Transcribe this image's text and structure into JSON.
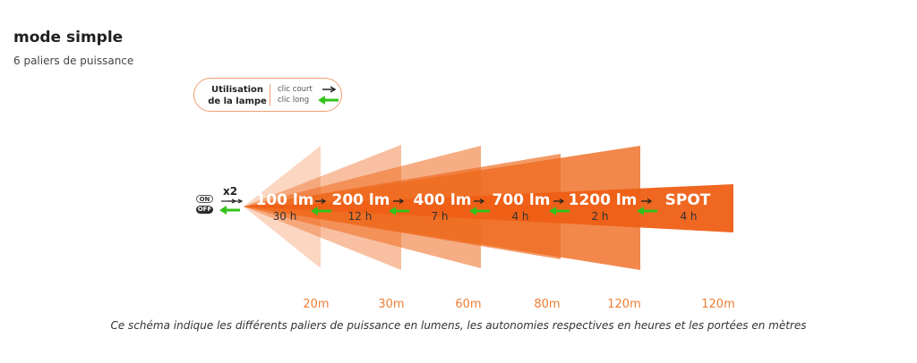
{
  "header": {
    "title": "mode simple",
    "subtitle": "6 paliers de puissance"
  },
  "usage": {
    "label": "Utilisation\nde la lampe",
    "short": "clic court",
    "long": "clic long"
  },
  "switch": {
    "on": "ON",
    "off": "OFF",
    "double": "x2"
  },
  "levels": [
    {
      "lumens": "100 lm",
      "hours": "30 h",
      "range": "20m"
    },
    {
      "lumens": "200 lm",
      "hours": "12 h",
      "range": "30m"
    },
    {
      "lumens": "400 lm",
      "hours": "7 h",
      "range": "60m"
    },
    {
      "lumens": "700 lm",
      "hours": "4 h",
      "range": "80m"
    },
    {
      "lumens": "1200 lm",
      "hours": "2 h",
      "range": "120m"
    },
    {
      "lumens": "SPOT",
      "hours": "4 h",
      "range": "120m"
    }
  ],
  "caption": "Ce schéma indique les différents paliers de puissance en lumens, les autonomies respectives en heures et les portées en mètres",
  "colors": {
    "accent": "#ef6a1f",
    "arrow_green": "#33c21a",
    "range_text": "#ef7d33"
  }
}
